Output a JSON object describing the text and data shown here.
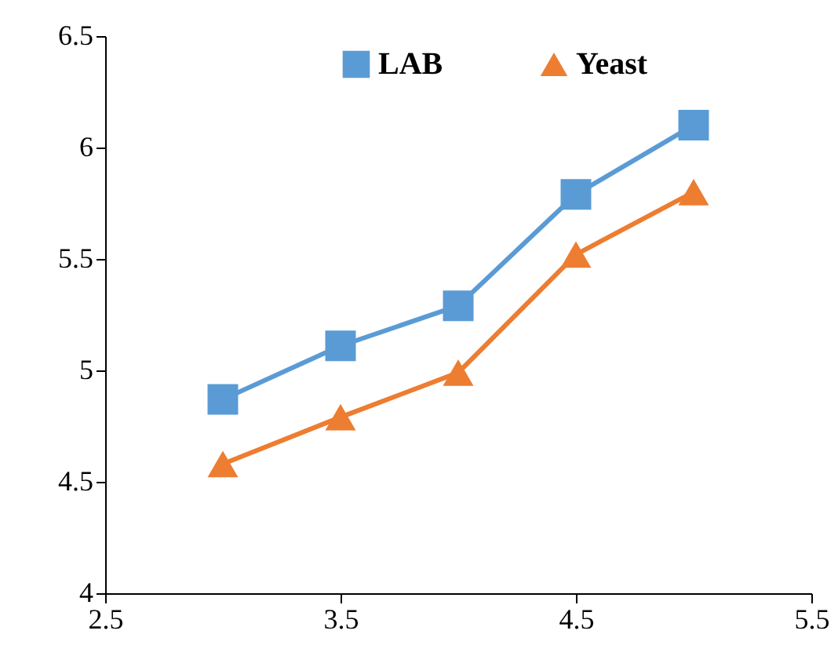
{
  "chart_data": {
    "type": "line",
    "x": [
      3,
      3.5,
      4,
      4.5,
      5
    ],
    "series": [
      {
        "name": "LAB",
        "color": "#5b9bd5",
        "marker": "square",
        "values": [
          4.87,
          5.11,
          5.29,
          5.79,
          6.1
        ]
      },
      {
        "name": "Yeast",
        "color": "#ed7d31",
        "marker": "triangle",
        "values": [
          4.58,
          4.79,
          4.99,
          5.52,
          5.8
        ]
      }
    ],
    "xlim": [
      2.5,
      5.5
    ],
    "xticks": [
      2.5,
      3.5,
      4.5,
      5.5
    ],
    "ylim": [
      4,
      6.5
    ],
    "yticks": [
      4,
      4.5,
      5,
      5.5,
      6,
      6.5
    ],
    "grid": false,
    "legend": "top",
    "line_style": "solid"
  }
}
